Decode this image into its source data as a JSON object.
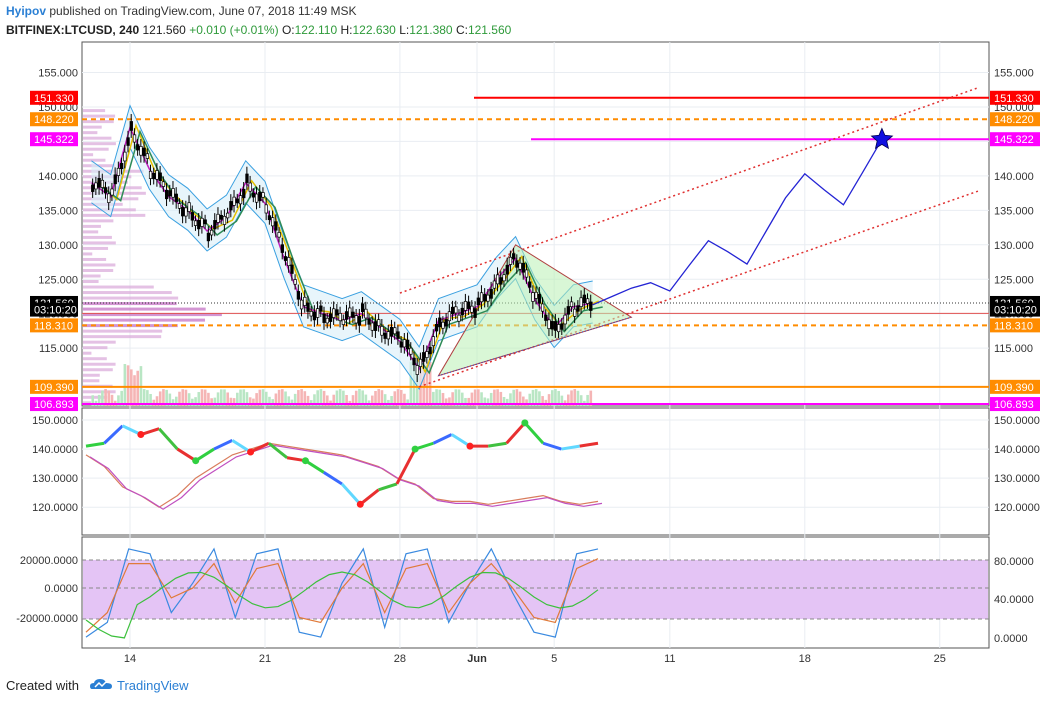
{
  "header": {
    "author": "Hyipov",
    "published": "published on TradingView.com, June 07, 2018 11:49 MSK",
    "symbol": "BITFINEX:LTCUSD, 240",
    "last": "121.560",
    "change": "+0.010 (+0.01%)",
    "o_label": "O:",
    "o_value": "122.110",
    "h_label": "H:",
    "h_value": "122.630",
    "l_label": "L:",
    "l_value": "121.380",
    "c_label": "C:",
    "c_value": "121.560"
  },
  "footer": {
    "created_with": "Created with",
    "brand": "TradingView"
  },
  "colors": {
    "red": "#ff0000",
    "orange": "#ff8c00",
    "magenta": "#ff00ff",
    "blue": "#2424d4",
    "grid": "#e9edf2",
    "stoch_band": "#e4c4f5"
  },
  "chart_data": [
    {
      "type": "line",
      "panel": "price",
      "title": "BITFINEX:LTCUSD, 240",
      "x_ticks": [
        "14",
        "21",
        "28",
        "Jun",
        "5",
        "11",
        "18",
        "25"
      ],
      "y_ticks": [
        155,
        150,
        145,
        140,
        135,
        130,
        125,
        120,
        115
      ],
      "ylim": [
        106.8,
        158.8
      ],
      "price_series_approx": {
        "name": "",
        "x": [
          "May 12",
          "May 13",
          "May 14",
          "May 15",
          "May 16",
          "May 17",
          "May 18",
          "May 19",
          "May 20",
          "May 21",
          "May 22",
          "May 23",
          "May 24",
          "May 25",
          "May 26",
          "May 27",
          "May 28",
          "May 29",
          "May 30",
          "May 31",
          "Jun 1",
          "Jun 2",
          "Jun 3",
          "Jun 4",
          "Jun 5",
          "Jun 6",
          "Jun 7"
        ],
        "values": [
          139,
          137,
          147,
          141,
          137,
          135,
          132,
          134,
          139,
          136,
          128,
          121,
          120,
          119,
          120,
          118,
          116,
          112,
          119,
          120,
          121,
          125,
          128,
          122,
          118,
          121,
          121.56
        ]
      },
      "levels": [
        {
          "label": "151.330",
          "value": 151.33,
          "color": "#ff0000",
          "style": "solid"
        },
        {
          "label": "148.220",
          "value": 148.22,
          "color": "#ff8c00",
          "style": "dashed"
        },
        {
          "label": "145.322",
          "value": 145.322,
          "color": "#ff00ff",
          "style": "solid"
        },
        {
          "label": "121.560",
          "value": 121.56,
          "color": "#000000",
          "style": "dotted"
        },
        {
          "label": "03:10:20",
          "value": 120.6,
          "color": "#000000",
          "style": "none"
        },
        {
          "label": "118.310",
          "value": 118.31,
          "color": "#ff8c00",
          "style": "dashed"
        },
        {
          "label": "109.390",
          "value": 109.39,
          "color": "#ff8c00",
          "style": "solid"
        },
        {
          "label": "106.893",
          "value": 106.893,
          "color": "#ff00ff",
          "style": "solid"
        }
      ],
      "projection": {
        "x": [
          "Jun 7",
          "Jun 8",
          "Jun 9",
          "Jun 10",
          "Jun 11",
          "Jun 12",
          "Jun 13",
          "Jun 14",
          "Jun 15",
          "Jun 16",
          "Jun 17",
          "Jun 18",
          "Jun 19",
          "Jun 20",
          "Jun 21",
          "Jun 22"
        ],
        "values": [
          121.3,
          122.5,
          123.7,
          124.5,
          123.3,
          127,
          130.6,
          129,
          127.2,
          132,
          136.8,
          140.3,
          138,
          135.8,
          140.5,
          145.3
        ]
      },
      "channel_upper": {
        "x": [
          "May 28",
          "Jun 27"
        ],
        "values": [
          123,
          152.8
        ]
      },
      "channel_lower": {
        "x": [
          "May 29",
          "Jun 27"
        ],
        "values": [
          109.4,
          137.8
        ]
      },
      "triangle": {
        "x": [
          "Jun 3",
          "Jun 9",
          "May 30"
        ],
        "values": [
          130,
          119.5,
          111
        ]
      },
      "star": {
        "x": "Jun 22",
        "value": 145.3
      }
    },
    {
      "type": "line",
      "panel": "oscillator",
      "y_ticks": [
        150,
        140,
        130,
        120
      ],
      "series": [
        {
          "values": [
            138,
            134,
            127,
            124,
            120,
            124,
            130,
            134,
            138,
            140,
            142,
            141,
            140,
            139,
            138,
            136,
            134,
            130,
            128,
            123,
            122,
            122,
            121,
            122,
            123,
            124,
            122,
            121,
            122
          ]
        },
        {
          "values": [
            141,
            142,
            148,
            145,
            147,
            140,
            136,
            140,
            143,
            139,
            142,
            137,
            136,
            132,
            128,
            121,
            126,
            128,
            140,
            142,
            145,
            141,
            141,
            142,
            149,
            142,
            140,
            141,
            142
          ]
        }
      ]
    },
    {
      "type": "line",
      "panel": "stochastic",
      "y_ticks_left": [
        "20000.0000",
        "0.0000",
        "-20000.0000"
      ],
      "y_ticks_right": [
        "80.0000",
        "40.0000",
        "0.0000"
      ],
      "series": [
        {
          "values": [
            5,
            20,
            95,
            90,
            30,
            60,
            95,
            25,
            90,
            95,
            10,
            5,
            60,
            95,
            15,
            90,
            95,
            20,
            60,
            95,
            50,
            10,
            5,
            90,
            95
          ]
        },
        {
          "values": [
            10,
            30,
            80,
            80,
            45,
            55,
            80,
            40,
            75,
            80,
            25,
            20,
            55,
            80,
            30,
            75,
            80,
            30,
            60,
            80,
            55,
            25,
            20,
            75,
            85
          ]
        }
      ]
    }
  ]
}
